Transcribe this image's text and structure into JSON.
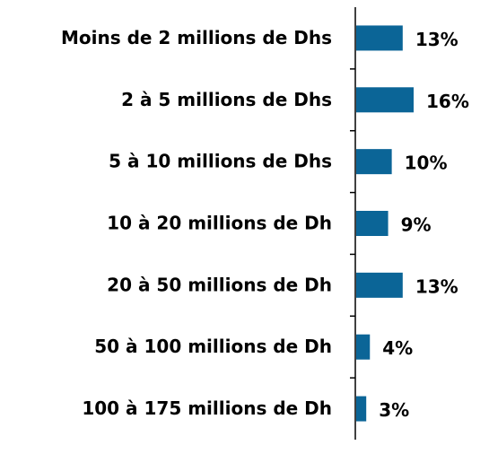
{
  "chart_data": {
    "type": "bar",
    "orientation": "horizontal",
    "categories": [
      "Moins de 2 millions de Dhs",
      "2 à 5 millions de Dhs",
      "5 à 10 millions de Dhs",
      "10 à 20 millions de Dh",
      "20 à 50 millions de Dh",
      "50 à 100 millions de Dh",
      "100 à 175 millions de Dh"
    ],
    "values": [
      13,
      16,
      10,
      9,
      13,
      4,
      3
    ],
    "value_labels": [
      "13%",
      "16%",
      "10%",
      "9%",
      "13%",
      "4%",
      "3%"
    ],
    "color": "#0b6597"
  }
}
